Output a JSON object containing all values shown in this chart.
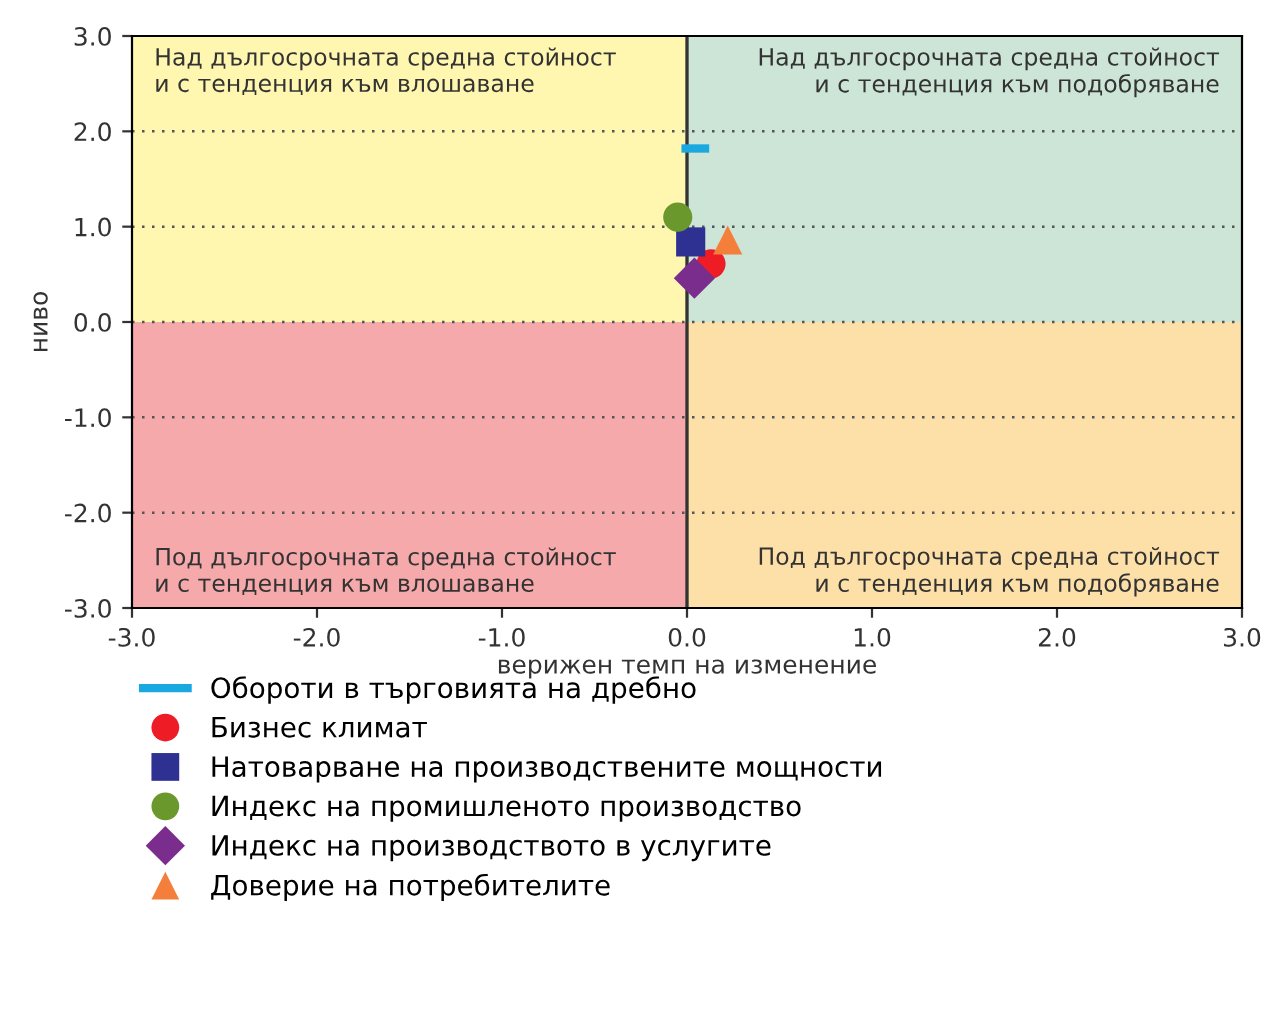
{
  "chart_data": {
    "type": "scatter",
    "xlabel": "верижен темп на изменение",
    "ylabel": "ниво",
    "xlim": [
      -3,
      3
    ],
    "ylim": [
      -3,
      3
    ],
    "xticks": [
      {
        "value": -3,
        "label": "-3.0"
      },
      {
        "value": -2,
        "label": "-2.0"
      },
      {
        "value": -1,
        "label": "-1.0"
      },
      {
        "value": 0,
        "label": "0.0"
      },
      {
        "value": 1,
        "label": "1.0"
      },
      {
        "value": 2,
        "label": "2.0"
      },
      {
        "value": 3,
        "label": "3.0"
      }
    ],
    "yticks": [
      {
        "value": -3,
        "label": "-3.0"
      },
      {
        "value": -2,
        "label": "-2.0"
      },
      {
        "value": -1,
        "label": "-1.0"
      },
      {
        "value": 0,
        "label": "0.0"
      },
      {
        "value": 1,
        "label": "1.0"
      },
      {
        "value": 2,
        "label": "2.0"
      },
      {
        "value": 3,
        "label": "3.0"
      }
    ],
    "grid": "y",
    "legend": "bottom",
    "bands": [
      {
        "axis": "x",
        "from": -3,
        "to": 0,
        "color": "#fff6b0",
        "label": "Над дългосрочната средна стойност\nи с тенденция към влошаване"
      },
      {
        "axis": "x",
        "from": 0,
        "to": 3,
        "color": "#cce5d6",
        "label": "Над дългосрочната средна стойност\nи с тенденция към подобряване"
      },
      {
        "axis": "x",
        "from": -3,
        "to": 0,
        "color": "#f6a9ab",
        "label": "Под дългосрочната средна стойност\nи с тенденция към влошаване"
      },
      {
        "axis": "x",
        "from": 0,
        "to": 3,
        "color": "#fde0a8",
        "label": "Под дългосрочната средна стойност\nи с тенденция към подобряване"
      }
    ],
    "ref_lines": [
      {
        "axis": "x",
        "value": 0,
        "color": "#333333"
      }
    ],
    "series": [
      {
        "name": "Обороти в търговията на дребно",
        "type": "line",
        "color": "#1aa8e0",
        "x": [
          -0.03,
          0.12
        ],
        "values": [
          1.82,
          1.82
        ]
      },
      {
        "name": "Бизнес климат",
        "marker": "circle",
        "color": "#ee1c25",
        "x": [
          0.13
        ],
        "values": [
          0.61
        ]
      },
      {
        "name": "Натоварване на производствените мощности",
        "marker": "square",
        "color": "#2e3192",
        "x": [
          0.02
        ],
        "values": [
          0.84
        ]
      },
      {
        "name": "Индекс на промишленото производство",
        "marker": "circle",
        "color": "#6b982d",
        "x": [
          -0.05
        ],
        "values": [
          1.1
        ]
      },
      {
        "name": "Индекс на производството в услугите",
        "marker": "diamond",
        "color": "#7b2d8e",
        "x": [
          0.04
        ],
        "values": [
          0.46
        ]
      },
      {
        "name": "Доверие на потребителите",
        "marker": "triangle",
        "color": "#f47f3a",
        "x": [
          0.22
        ],
        "values": [
          0.86
        ]
      }
    ]
  }
}
